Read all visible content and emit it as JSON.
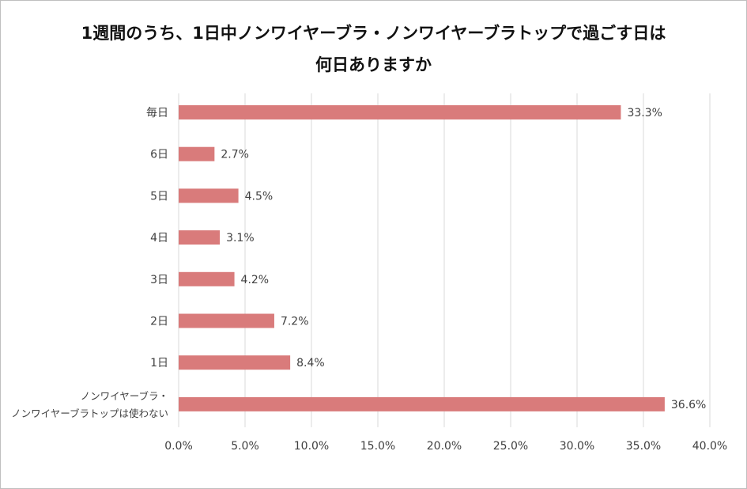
{
  "chart_data": {
    "type": "bar",
    "orientation": "horizontal",
    "title_lines": [
      "1週間のうち、1日中ノンワイヤーブラ・ノンワイヤーブラトップで過ごす日は",
      "何日ありますか"
    ],
    "categories": [
      [
        "毎日"
      ],
      [
        "6日"
      ],
      [
        "5日"
      ],
      [
        "4日"
      ],
      [
        "3日"
      ],
      [
        "2日"
      ],
      [
        "1日"
      ],
      [
        "ノンワイヤーブラ・",
        "ノンワイヤーブラトップは使わない"
      ]
    ],
    "values": [
      33.3,
      2.7,
      4.5,
      3.1,
      4.2,
      7.2,
      8.4,
      36.6
    ],
    "data_labels": [
      "33.3%",
      "2.7%",
      "4.5%",
      "3.1%",
      "4.2%",
      "7.2%",
      "8.4%",
      "36.6%"
    ],
    "xlim": [
      0,
      40
    ],
    "x_ticks": [
      0,
      5,
      10,
      15,
      20,
      25,
      30,
      35,
      40
    ],
    "x_tick_labels": [
      "0.0%",
      "5.0%",
      "10.0%",
      "15.0%",
      "20.0%",
      "25.0%",
      "30.0%",
      "35.0%",
      "40.0%"
    ],
    "grid": true,
    "legend": "none",
    "bar_color": "#d97b7b",
    "grid_color": "#d9d9d9"
  }
}
